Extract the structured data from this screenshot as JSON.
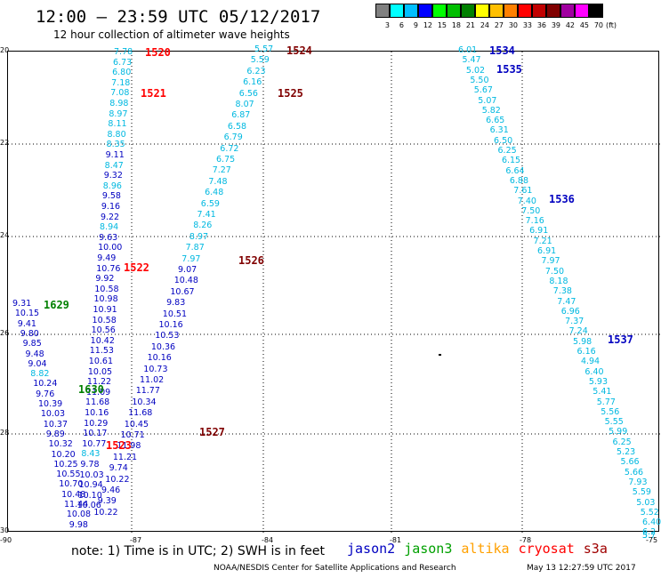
{
  "title": "12:00 – 23:59 UTC 05/12/2017",
  "subtitle": "12 hour collection of altimeter wave heights",
  "legend": {
    "unit": "(ft)",
    "bins": [
      {
        "label": "3",
        "color": "#808080"
      },
      {
        "label": "6",
        "color": "#00ffff"
      },
      {
        "label": "9",
        "color": "#00bfff"
      },
      {
        "label": "12",
        "color": "#0000ff"
      },
      {
        "label": "15",
        "color": "#00ff00"
      },
      {
        "label": "18",
        "color": "#00bf00"
      },
      {
        "label": "21",
        "color": "#008000"
      },
      {
        "label": "24",
        "color": "#ffff00"
      },
      {
        "label": "27",
        "color": "#ffbf00"
      },
      {
        "label": "30",
        "color": "#ff8000"
      },
      {
        "label": "33",
        "color": "#ff0000"
      },
      {
        "label": "36",
        "color": "#c00000"
      },
      {
        "label": "39",
        "color": "#800000"
      },
      {
        "label": "42",
        "color": "#a000a0"
      },
      {
        "label": "45",
        "color": "#ff00ff"
      },
      {
        "label": "70",
        "color": "#000000"
      }
    ]
  },
  "axes": {
    "lat_labels": [
      "20",
      "22",
      "24",
      "26",
      "28",
      "30"
    ],
    "lon_labels": [
      "-90",
      "-87",
      "-84",
      "-81",
      "-78",
      "-75"
    ]
  },
  "passes": [
    {
      "id": "1520",
      "color": "#ff0000"
    },
    {
      "id": "1521",
      "color": "#ff0000"
    },
    {
      "id": "1522",
      "color": "#ff0000"
    },
    {
      "id": "1523",
      "color": "#ff0000"
    },
    {
      "id": "1524",
      "color": "#800000"
    },
    {
      "id": "1525",
      "color": "#800000"
    },
    {
      "id": "1526",
      "color": "#800000"
    },
    {
      "id": "1527",
      "color": "#800000"
    },
    {
      "id": "1534",
      "color": "#0000c0"
    },
    {
      "id": "1535",
      "color": "#0000c0"
    },
    {
      "id": "1536",
      "color": "#0000c0"
    },
    {
      "id": "1537",
      "color": "#0000c0"
    },
    {
      "id": "1629",
      "color": "#008000"
    },
    {
      "id": "1630",
      "color": "#008000"
    }
  ],
  "tracks": {
    "track1": [
      "7.78",
      "6.73",
      "6.80",
      "7.18",
      "7.08",
      "8.98",
      "8.97",
      "8.11",
      "8.80",
      "8.35",
      "9.11",
      "8.47",
      "9.32",
      "8.96",
      "9.58",
      "9.16",
      "9.22",
      "8.94",
      "9.63",
      "10.00",
      "9.49",
      "10.76",
      "9.92",
      "10.58",
      "10.98",
      "10.91",
      "10.58",
      "10.56",
      "10.42",
      "11.53",
      "10.61",
      "10.05",
      "11.22",
      "11.09",
      "11.68",
      "10.16",
      "10.29",
      "10.17",
      "10.77",
      "8.43",
      "9.78",
      "10.03",
      "10.94",
      "10.10",
      "10.06"
    ],
    "track2": [
      "9.31",
      "10.15",
      "9.41",
      "9.80",
      "9.85",
      "9.48",
      "9.04",
      "8.82",
      "10.24",
      "9.76",
      "10.39",
      "10.03",
      "10.37",
      "9.89",
      "10.32",
      "10.20",
      "10.25",
      "10.55",
      "10.70",
      "10.48",
      "11.44",
      "10.08",
      "9.98"
    ],
    "track3": [
      "5.57",
      "5.59",
      "6.23",
      "6.16",
      "6.56",
      "8.07",
      "6.87",
      "6.58",
      "6.79",
      "6.72",
      "6.75",
      "7.27",
      "7.48",
      "6.48",
      "6.59",
      "7.41",
      "8.26",
      "8.97",
      "7.87",
      "7.97",
      "9.07",
      "10.48",
      "10.67",
      "9.83",
      "10.51",
      "10.16",
      "10.53",
      "10.36",
      "10.16",
      "10.73",
      "11.02",
      "11.77",
      "10.34",
      "11.68",
      "10.45",
      "10.71",
      "11.98",
      "11.21",
      "9.74",
      "10.22",
      "9.46",
      "9.39",
      "10.22"
    ],
    "track4": [
      "6.01",
      "5.47",
      "5.02",
      "5.50",
      "5.67",
      "5.07",
      "5.82",
      "6.65",
      "6.31",
      "6.50",
      "6.25",
      "6.15",
      "6.64",
      "6.88",
      "7.61",
      "7.40",
      "7.50",
      "7.16",
      "6.91",
      "7.21",
      "6.91",
      "7.97",
      "7.50",
      "8.18",
      "7.38",
      "7.47",
      "6.96",
      "7.37",
      "7.24",
      "5.98",
      "6.16",
      "4.94",
      "6.40",
      "5.93",
      "5.41",
      "5.77",
      "5.56",
      "5.55",
      "5.99",
      "6.25",
      "5.23",
      "5.66",
      "5.66",
      "7.93",
      "5.59",
      "5.03",
      "5.52",
      "6.40",
      "6.2",
      "5.7",
      "5"
    ]
  },
  "note": "note:  1) Time is in UTC;  2) SWH is in feet",
  "satellites": [
    {
      "name": "jason2",
      "color": "#0000c0"
    },
    {
      "name": "jason3",
      "color": "#00a000"
    },
    {
      "name": "altika",
      "color": "#ffa000"
    },
    {
      "name": "cryosat",
      "color": "#ff0000"
    },
    {
      "name": "s3a",
      "color": "#a00000"
    }
  ],
  "credit": "NOAA/NESDIS Center for Satellite Applications and Research",
  "timestamp": "May 13 12:27:59 UTC 2017"
}
